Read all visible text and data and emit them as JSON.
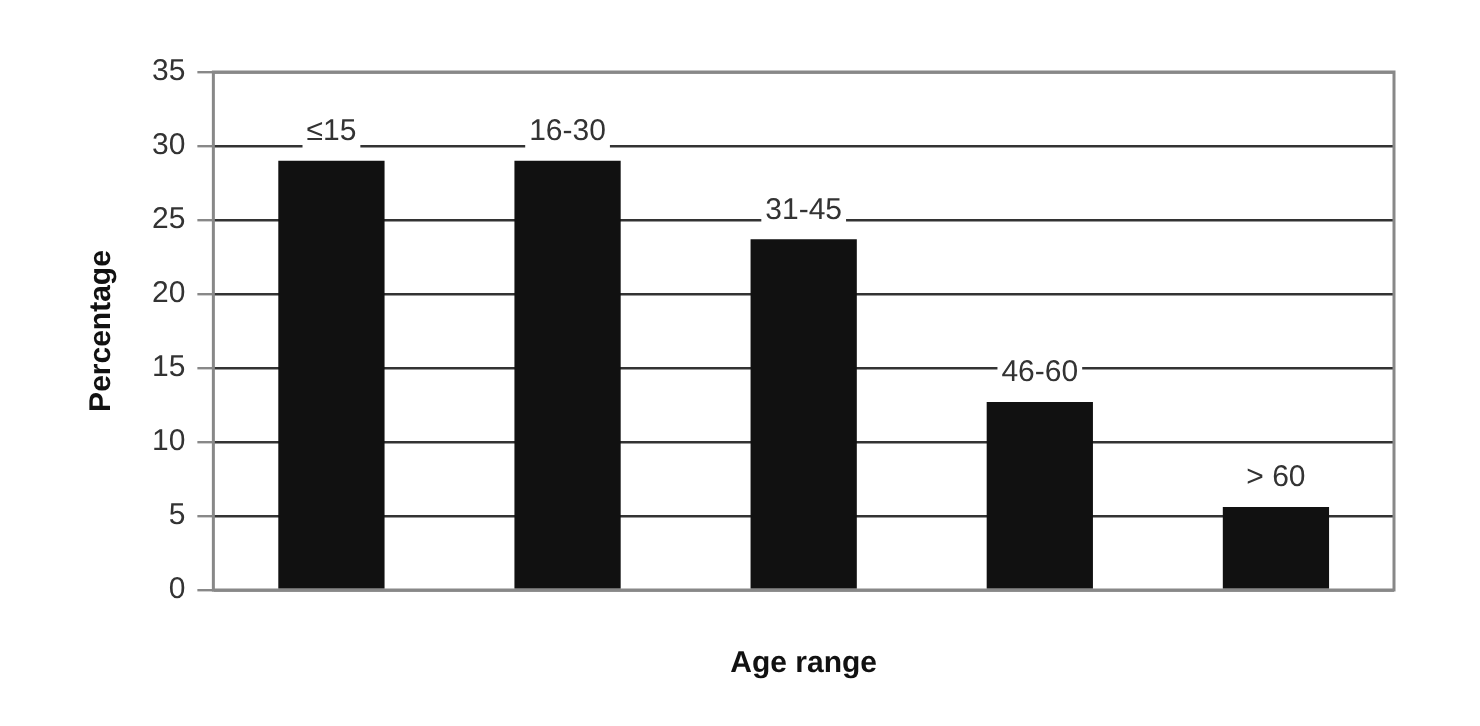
{
  "chart_data": {
    "type": "bar",
    "xlabel": "Age range",
    "ylabel": "Percentage",
    "categories": [
      "≤15",
      "16-30",
      "31-45",
      "46-60",
      "> 60"
    ],
    "values": [
      29,
      29,
      23.7,
      12.7,
      5.6
    ],
    "color": "#111111",
    "ylim": [
      0,
      35
    ],
    "yticks": [
      0,
      5,
      10,
      15,
      20,
      25,
      30,
      35
    ],
    "grid": "y",
    "legend": false,
    "tick_labels": "y"
  }
}
